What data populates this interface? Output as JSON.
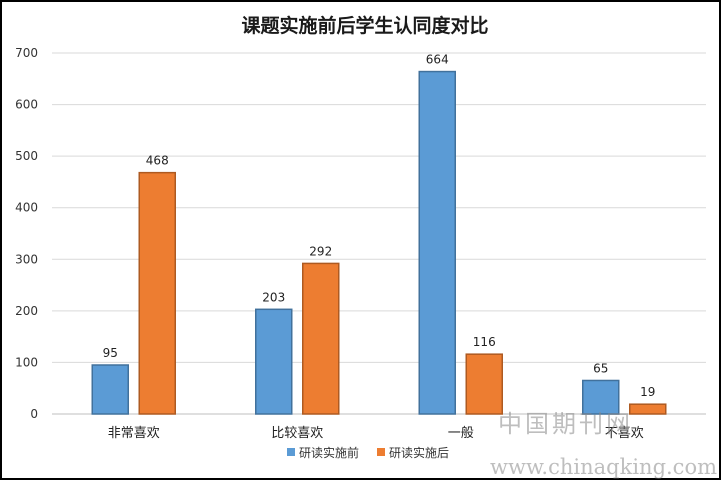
{
  "chart_data": {
    "type": "bar",
    "title": "课题实施前后学生认同度对比",
    "xlabel": "",
    "ylabel": "",
    "categories": [
      "非常喜欢",
      "比较喜欢",
      "一般",
      "不喜欢"
    ],
    "series": [
      {
        "name": "研读实施前",
        "color": "#5B9BD5",
        "values": [
          95,
          203,
          664,
          65
        ]
      },
      {
        "name": "研读实施后",
        "color": "#ED7D31",
        "values": [
          468,
          292,
          116,
          19
        ]
      }
    ],
    "ylim": [
      0,
      700
    ],
    "yticks": [
      0,
      100,
      200,
      300,
      400,
      500,
      600,
      700
    ],
    "grid": true,
    "legend": "bottom-center"
  },
  "watermark": {
    "line1": "中国期刊网",
    "line2": "www.chinaqking.com"
  }
}
